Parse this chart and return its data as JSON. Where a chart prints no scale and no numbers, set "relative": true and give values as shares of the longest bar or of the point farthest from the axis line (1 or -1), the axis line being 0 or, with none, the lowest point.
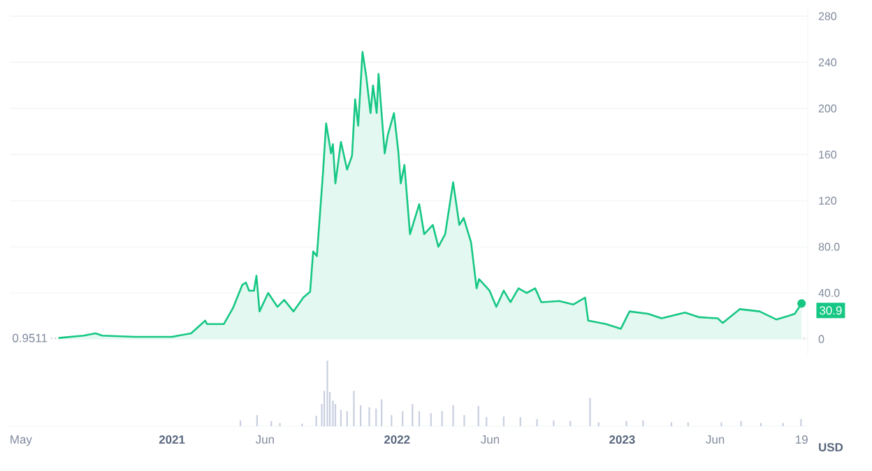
{
  "chart_data": [
    {
      "type": "area",
      "color": "#16c784",
      "grid": "y",
      "tick_labels": "y",
      "xlim": [
        "2020-04-13",
        "2023-10-29"
      ],
      "ylim": [
        -15,
        288
      ],
      "yticks": [
        0,
        {
          "value": 40,
          "label": "40.0"
        },
        {
          "value": 80,
          "label": "80.0"
        },
        120,
        160,
        200,
        240,
        280
      ],
      "ref_lines": [
        {
          "axis": "y",
          "value": 0.9511,
          "label": "0.9511",
          "color": "#a6b0c3",
          "line_style": "dotted"
        }
      ],
      "annotations": [
        {
          "text": "30.9",
          "x": "2023-10-19",
          "y": 30.9
        }
      ],
      "x": [
        "2020-07-01",
        "2020-08-11",
        "2020-08-30",
        "2020-09-10",
        "2020-11-02",
        "2021-01-01",
        "2021-02-01",
        "2021-02-24",
        "2021-02-27",
        "2021-03-26",
        "2021-04-10",
        "2021-04-25",
        "2021-05-01",
        "2021-05-06",
        "2021-05-14",
        "2021-05-18",
        "2021-05-23",
        "2021-06-06",
        "2021-06-21",
        "2021-07-02",
        "2021-07-17",
        "2021-08-02",
        "2021-08-13",
        "2021-08-18",
        "2021-08-24",
        "2021-09-03",
        "2021-09-08",
        "2021-09-16",
        "2021-09-19",
        "2021-09-23",
        "2021-10-02",
        "2021-10-12",
        "2021-10-20",
        "2021-10-25",
        "2021-10-30",
        "2021-11-06",
        "2021-11-12",
        "2021-11-19",
        "2021-11-23",
        "2021-11-29",
        "2021-12-02",
        "2021-12-12",
        "2021-12-17",
        "2021-12-27",
        "2022-01-03",
        "2022-01-07",
        "2022-01-13",
        "2022-01-22",
        "2022-02-06",
        "2022-02-14",
        "2022-02-28",
        "2022-03-09",
        "2022-03-20",
        "2022-04-02",
        "2022-04-12",
        "2022-04-19",
        "2022-05-01",
        "2022-05-10",
        "2022-05-14",
        "2022-05-31",
        "2022-06-11",
        "2022-06-23",
        "2022-07-04",
        "2022-07-17",
        "2022-07-30",
        "2022-08-13",
        "2022-08-23",
        "2022-09-21",
        "2022-10-14",
        "2022-11-02",
        "2022-11-07",
        "2022-12-06",
        "2022-12-30",
        "2023-01-13",
        "2023-02-12",
        "2023-03-06",
        "2023-04-13",
        "2023-05-06",
        "2023-06-05",
        "2023-06-13",
        "2023-07-11",
        "2023-08-12",
        "2023-09-08",
        "2023-09-27",
        "2023-10-08",
        "2023-10-19"
      ],
      "values": [
        1,
        3,
        5,
        3,
        2,
        2,
        5,
        16,
        13,
        13,
        27,
        47,
        49,
        42,
        42,
        55,
        24,
        40,
        28,
        34,
        24,
        36,
        41,
        76,
        72,
        145,
        187,
        161,
        169,
        135,
        171,
        147,
        159,
        208,
        185,
        249,
        228,
        196,
        220,
        196,
        230,
        161,
        177,
        196,
        163,
        135,
        151,
        91,
        117,
        91,
        99,
        80,
        91,
        136,
        99,
        105,
        84,
        44,
        52,
        42,
        28,
        42,
        32,
        44,
        40,
        44,
        32,
        33,
        30,
        36,
        16,
        13,
        9,
        24,
        22,
        18,
        23,
        19,
        18,
        14,
        26,
        24,
        17,
        20,
        22,
        30.9
      ]
    },
    {
      "type": "bar",
      "relative": true,
      "color": "#c9cfe0",
      "tick_labels": "x",
      "ylabel": "USD",
      "xlim": [
        "2020-04-13",
        "2023-10-29"
      ],
      "xticks": [
        {
          "value": "2020-05-01",
          "label": "May"
        },
        {
          "value": "2021-01-01",
          "label": "2021"
        },
        {
          "value": "2021-06-01",
          "label": "Jun"
        },
        {
          "value": "2022-01-01",
          "label": "2022"
        },
        {
          "value": "2022-06-01",
          "label": "Jun"
        },
        {
          "value": "2023-01-01",
          "label": "2023"
        },
        {
          "value": "2023-06-01",
          "label": "Jun"
        },
        {
          "value": "2023-10-19",
          "label": "19"
        }
      ],
      "x": [
        "2021-04-22",
        "2021-05-19",
        "2021-06-11",
        "2021-06-25",
        "2021-07-31",
        "2021-08-23",
        "2021-09-01",
        "2021-09-05",
        "2021-09-10",
        "2021-09-14",
        "2021-09-19",
        "2021-09-23",
        "2021-10-02",
        "2021-10-12",
        "2021-10-23",
        "2021-11-03",
        "2021-11-17",
        "2021-11-28",
        "2021-12-07",
        "2021-12-23",
        "2022-01-10",
        "2022-01-26",
        "2022-02-06",
        "2022-02-25",
        "2022-03-15",
        "2022-04-02",
        "2022-04-20",
        "2022-05-13",
        "2022-05-26",
        "2022-06-23",
        "2022-07-20",
        "2022-08-16",
        "2022-09-12",
        "2022-10-09",
        "2022-11-10",
        "2022-11-24",
        "2023-01-08",
        "2023-02-04",
        "2023-03-22",
        "2023-04-18",
        "2023-06-11",
        "2023-07-13",
        "2023-08-14",
        "2023-09-19",
        "2023-10-18"
      ],
      "values": [
        0.09,
        0.17,
        0.08,
        0.05,
        0.04,
        0.16,
        0.34,
        0.54,
        1,
        0.52,
        0.39,
        0.34,
        0.25,
        0.23,
        0.54,
        0.32,
        0.29,
        0.27,
        0.41,
        0.17,
        0.23,
        0.34,
        0.23,
        0.2,
        0.23,
        0.32,
        0.17,
        0.31,
        0.14,
        0.15,
        0.14,
        0.11,
        0.09,
        0.08,
        0.43,
        0.06,
        0.08,
        0.09,
        0.06,
        0.06,
        0.06,
        0.08,
        0.05,
        0.05,
        0.11
      ]
    }
  ]
}
